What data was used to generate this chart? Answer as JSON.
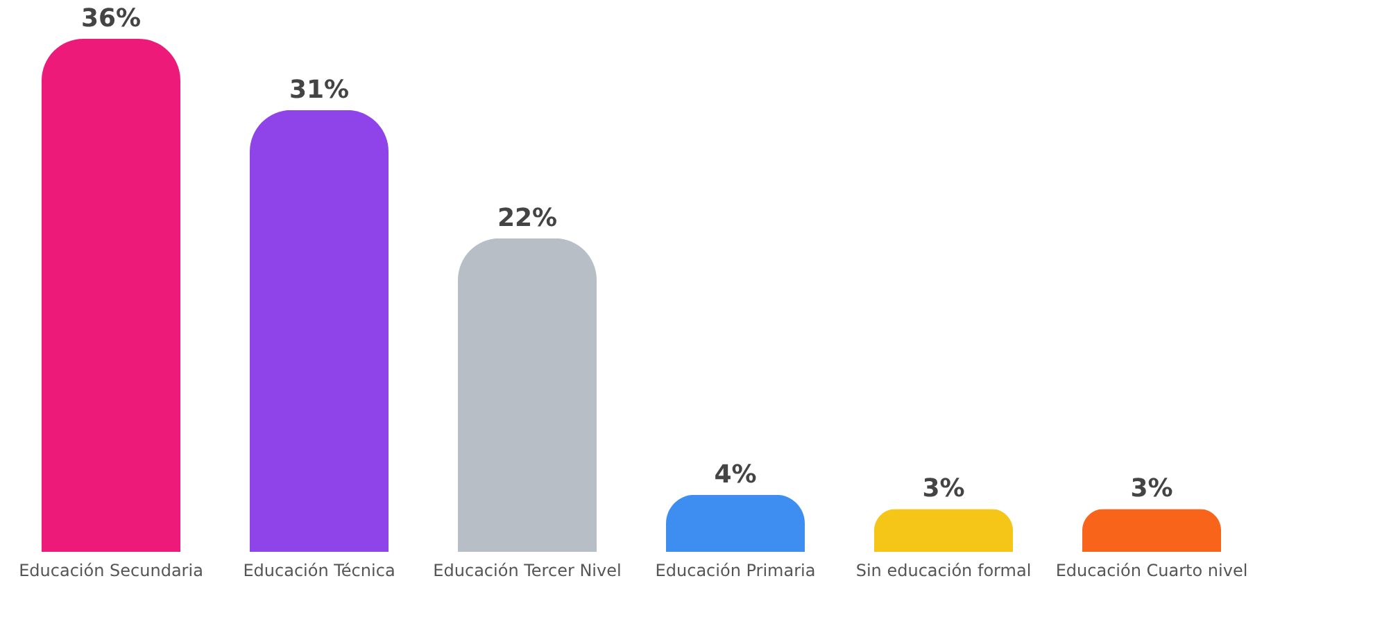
{
  "chart_data": {
    "type": "bar",
    "categories": [
      "Educación Secundaria",
      "Educación Técnica",
      "Educación Tercer Nivel",
      "Educación Primaria",
      "Sin educación formal",
      "Educación Cuarto nivel"
    ],
    "values": [
      36,
      31,
      22,
      4,
      3,
      3
    ],
    "value_labels": [
      "36%",
      "31%",
      "22%",
      "4%",
      "3%",
      "3%"
    ],
    "colors": [
      "#ee1a7a",
      "#8e44e8",
      "#b8bec6",
      "#3d8ef0",
      "#f5c518",
      "#f8651a"
    ],
    "grid": false
  }
}
